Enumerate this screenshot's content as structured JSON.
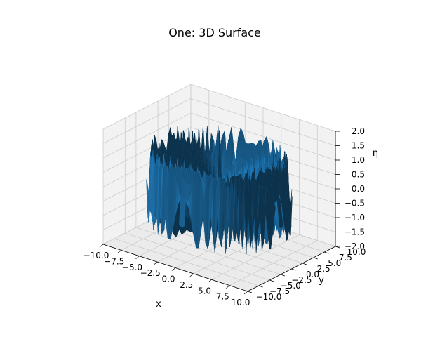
{
  "chart_data": {
    "type": "surface",
    "title": "One: 3D Surface",
    "xlabel": "x",
    "ylabel": "y",
    "zlabel": "η",
    "xlim": [
      -10,
      10
    ],
    "ylim": [
      -10,
      10
    ],
    "zlim": [
      -2,
      2
    ],
    "x_ticks": [
      "−10.0",
      "−7.5",
      "−5.0",
      "−2.5",
      "0.0",
      "2.5",
      "5.0",
      "7.5",
      "10.0"
    ],
    "y_ticks": [
      "−10.0",
      "−7.5",
      "−5.0",
      "−2.5",
      "0.0",
      "2.5",
      "5.0",
      "7.5",
      "10.0"
    ],
    "z_ticks": [
      "−2.0",
      "−1.5",
      "−1.0",
      "−0.5",
      "0.0",
      "0.5",
      "1.0",
      "1.5",
      "2.0"
    ],
    "grid": true,
    "pane_color": "#f2f2f2",
    "surface_color": "#1f77b4",
    "surface_model": "radial ripple: eta = sin(8r)·(0.35 + 0.12r) clipped to [-2, 2] over r ≤ 8.4, with a sharp peak at the origin",
    "peak": {
      "x": 0,
      "y": 0,
      "z": 2
    }
  }
}
